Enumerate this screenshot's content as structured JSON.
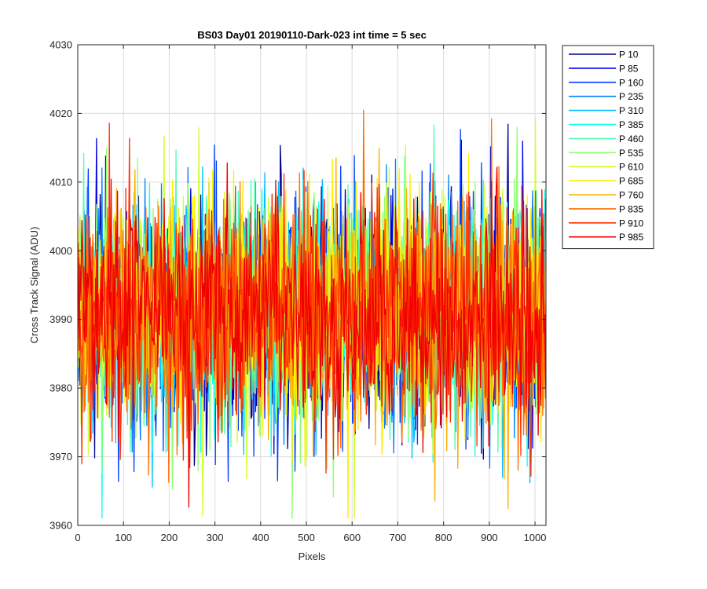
{
  "chart_data": {
    "type": "line",
    "title": "BS03 Day01 20190110-Dark-023 int time = 5 sec",
    "xlabel": "Pixels",
    "ylabel": "Cross Track Signal (ADU)",
    "xlim": [
      0,
      1024
    ],
    "ylim": [
      3960,
      4030
    ],
    "xticks": [
      0,
      100,
      200,
      300,
      400,
      500,
      600,
      700,
      800,
      900,
      1000
    ],
    "yticks": [
      3960,
      3970,
      3980,
      3990,
      4000,
      4010,
      4020,
      4030
    ],
    "grid": true,
    "legend_position": "outside-top-right",
    "x_start": 1,
    "x_end": 1024,
    "approx_mean": 3991,
    "approx_std": 8.5,
    "series": [
      {
        "name": "P 10",
        "color": "#00008F"
      },
      {
        "name": "P 85",
        "color": "#0000E6"
      },
      {
        "name": "P 160",
        "color": "#0040FF"
      },
      {
        "name": "P 235",
        "color": "#0080FF"
      },
      {
        "name": "P 310",
        "color": "#00BFFF"
      },
      {
        "name": "P 385",
        "color": "#10FFEF"
      },
      {
        "name": "P 460",
        "color": "#50FFAF"
      },
      {
        "name": "P 535",
        "color": "#8FFF70"
      },
      {
        "name": "P 610",
        "color": "#CFFF30"
      },
      {
        "name": "P 685",
        "color": "#FFEF00"
      },
      {
        "name": "P 760",
        "color": "#FFAF00"
      },
      {
        "name": "P 835",
        "color": "#FF7000"
      },
      {
        "name": "P 910",
        "color": "#FF3000"
      },
      {
        "name": "P 985",
        "color": "#F00000"
      }
    ]
  }
}
